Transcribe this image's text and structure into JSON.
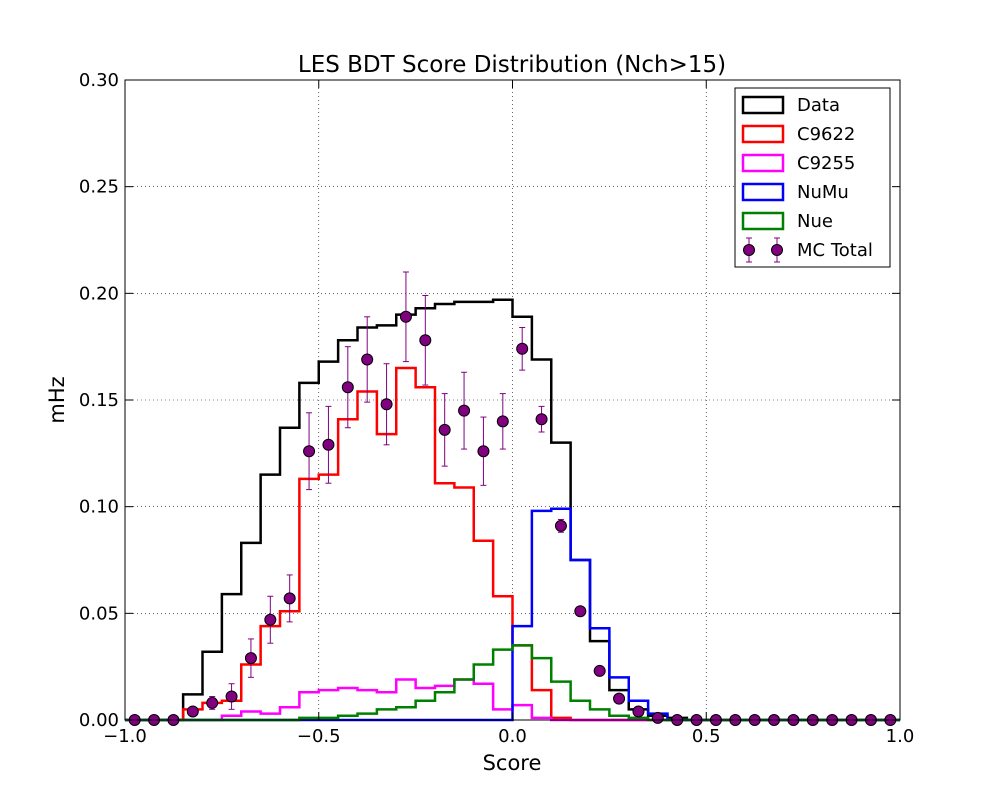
{
  "chart_data": {
    "type": "step-histogram",
    "title": "LES BDT Score Distribution (Nch>15)",
    "xlabel": "Score",
    "ylabel": "mHz",
    "xlim": [
      -1.0,
      1.0
    ],
    "ylim": [
      0.0,
      0.3
    ],
    "grid": true,
    "legend_position": "top-right",
    "xticks": [
      -1.0,
      -0.5,
      0.0,
      0.5,
      1.0
    ],
    "xtick_labels": [
      "−1.0",
      "−0.5",
      "0.0",
      "0.5",
      "1.0"
    ],
    "yticks": [
      0.0,
      0.05,
      0.1,
      0.15,
      0.2,
      0.25,
      0.3
    ],
    "ytick_labels": [
      "0.00",
      "0.05",
      "0.10",
      "0.15",
      "0.20",
      "0.25",
      "0.30"
    ],
    "bin_edges": [
      -1.0,
      -0.95,
      -0.9,
      -0.85,
      -0.8,
      -0.75,
      -0.7,
      -0.65,
      -0.6,
      -0.55,
      -0.5,
      -0.45,
      -0.4,
      -0.35,
      -0.3,
      -0.25,
      -0.2,
      -0.15,
      -0.1,
      -0.05,
      0.0,
      0.05,
      0.1,
      0.15,
      0.2,
      0.25,
      0.3,
      0.35,
      0.4,
      0.45,
      0.5,
      0.55,
      0.6,
      0.65,
      0.7,
      0.75,
      0.8,
      0.85,
      0.9,
      0.95,
      1.0
    ],
    "series": [
      {
        "name": "Data",
        "color": "#000000",
        "style": "step",
        "values": [
          0,
          0,
          0,
          0.012,
          0.032,
          0.059,
          0.083,
          0.115,
          0.137,
          0.158,
          0.168,
          0.178,
          0.184,
          0.185,
          0.19,
          0.193,
          0.195,
          0.196,
          0.196,
          0.197,
          0.189,
          0.169,
          0.13,
          0.075,
          0.037,
          0.014,
          0.005,
          0.002,
          0.001,
          0,
          0,
          0,
          0,
          0,
          0,
          0,
          0,
          0,
          0,
          0
        ]
      },
      {
        "name": "C9622",
        "color": "#ff0000",
        "style": "step",
        "values": [
          0,
          0,
          0,
          0.005,
          0.008,
          0.009,
          0.026,
          0.044,
          0.051,
          0.113,
          0.115,
          0.141,
          0.154,
          0.134,
          0.165,
          0.156,
          0.111,
          0.109,
          0.084,
          0.058,
          0.035,
          0.014,
          0.001,
          0,
          0,
          0,
          0,
          0,
          0,
          0,
          0,
          0,
          0,
          0,
          0,
          0,
          0,
          0,
          0,
          0
        ]
      },
      {
        "name": "C9255",
        "color": "#ff00ff",
        "style": "step",
        "values": [
          0,
          0,
          0,
          0,
          0,
          0.002,
          0.004,
          0.003,
          0.006,
          0.013,
          0.014,
          0.015,
          0.014,
          0.013,
          0.019,
          0.015,
          0.016,
          0.019,
          0.017,
          0.005,
          0.007,
          0.001,
          0,
          0,
          0,
          0,
          0,
          0,
          0,
          0,
          0,
          0,
          0,
          0,
          0,
          0,
          0,
          0,
          0,
          0
        ]
      },
      {
        "name": "NuMu",
        "color": "#0000ff",
        "style": "step",
        "values": [
          0,
          0,
          0,
          0,
          0,
          0,
          0,
          0,
          0,
          0,
          0,
          0,
          0,
          0,
          0,
          0,
          0,
          0,
          0,
          0,
          0.044,
          0.098,
          0.099,
          0.075,
          0.043,
          0.02,
          0.009,
          0.003,
          0,
          0,
          0,
          0,
          0,
          0,
          0,
          0,
          0,
          0,
          0,
          0
        ]
      },
      {
        "name": "Nue",
        "color": "#008000",
        "style": "step",
        "values": [
          0,
          0,
          0,
          0,
          0,
          0,
          0,
          0,
          0,
          0.001,
          0.001,
          0.002,
          0.003,
          0.005,
          0.006,
          0.009,
          0.013,
          0.019,
          0.026,
          0.033,
          0.035,
          0.029,
          0.018,
          0.009,
          0.005,
          0.002,
          0.001,
          0,
          0,
          0,
          0,
          0,
          0,
          0,
          0,
          0,
          0,
          0,
          0,
          0
        ]
      },
      {
        "name": "MC Total",
        "color": "#800080",
        "style": "errorbar",
        "x": [
          -0.975,
          -0.925,
          -0.875,
          -0.825,
          -0.775,
          -0.725,
          -0.675,
          -0.625,
          -0.575,
          -0.525,
          -0.475,
          -0.425,
          -0.375,
          -0.325,
          -0.275,
          -0.225,
          -0.175,
          -0.125,
          -0.075,
          -0.025,
          0.025,
          0.075,
          0.125,
          0.175,
          0.225,
          0.275,
          0.325,
          0.375,
          0.425,
          0.475,
          0.525,
          0.575,
          0.625,
          0.675,
          0.725,
          0.775,
          0.825,
          0.875,
          0.925,
          0.975
        ],
        "values": [
          0,
          0,
          0,
          0.004,
          0.008,
          0.011,
          0.029,
          0.047,
          0.057,
          0.126,
          0.129,
          0.156,
          0.169,
          0.148,
          0.189,
          0.178,
          0.136,
          0.145,
          0.126,
          0.14,
          0.174,
          0.141,
          0.091,
          0.051,
          0.023,
          0.01,
          0.004,
          0.001,
          0,
          0,
          0,
          0,
          0,
          0,
          0,
          0,
          0,
          0,
          0,
          0
        ],
        "errors": [
          0,
          0,
          0,
          0.002,
          0.003,
          0.006,
          0.009,
          0.011,
          0.011,
          0.018,
          0.018,
          0.019,
          0.02,
          0.019,
          0.021,
          0.021,
          0.017,
          0.018,
          0.016,
          0.013,
          0.01,
          0.006,
          0.003,
          0.002,
          0.001,
          0.001,
          0,
          0,
          0,
          0,
          0,
          0,
          0,
          0,
          0,
          0,
          0,
          0,
          0,
          0
        ]
      }
    ]
  }
}
